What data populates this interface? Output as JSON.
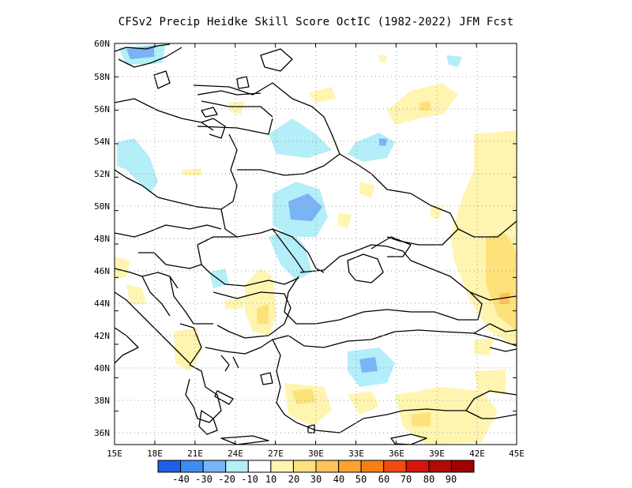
{
  "title": "CFSv2 Precip Heidke Skill Score OctIC (1982-2022) JFM Fcst",
  "lon_ticks": [
    "15E",
    "18E",
    "21E",
    "24E",
    "27E",
    "30E",
    "33E",
    "36E",
    "39E",
    "42E",
    "45E"
  ],
  "lat_ticks": [
    "60N",
    "58N",
    "56N",
    "54N",
    "52N",
    "50N",
    "48N",
    "46N",
    "44N",
    "42N",
    "40N",
    "38N",
    "36N"
  ],
  "colorbar": {
    "colors": [
      "#1c5ee8",
      "#3c8df0",
      "#78b4f6",
      "#b4eef8",
      "#ffffff",
      "#fff5b0",
      "#fde27c",
      "#fdc25a",
      "#fca22e",
      "#f87f14",
      "#f04a0c",
      "#d8140c",
      "#b40a04",
      "#a00000"
    ],
    "labels": [
      "-40",
      "-30",
      "-20",
      "-10",
      "10",
      "20",
      "30",
      "40",
      "50",
      "60",
      "70",
      "80",
      "90"
    ]
  }
}
